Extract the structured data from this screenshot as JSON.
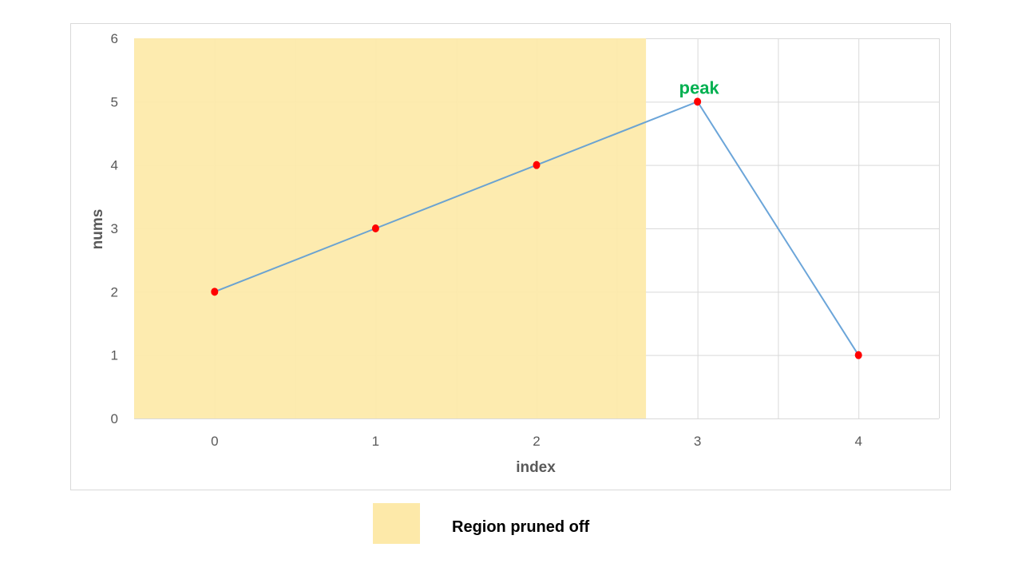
{
  "chart_data": {
    "type": "line",
    "x": [
      0,
      1,
      2,
      3,
      4
    ],
    "y": [
      2,
      3,
      4,
      5,
      1
    ],
    "xlabel": "index",
    "ylabel": "nums",
    "xticks": [
      "0",
      "1",
      "2",
      "3",
      "4"
    ],
    "yticks": [
      "0",
      "1",
      "2",
      "3",
      "4",
      "5",
      "6"
    ],
    "xlim": [
      -0.5,
      4.5
    ],
    "ylim": [
      0,
      6
    ],
    "grid": true,
    "shaded_region": {
      "x_start": -0.5,
      "x_end": 2.68,
      "color": "#fde9a9"
    },
    "annotations": [
      {
        "text": "peak",
        "x": 3,
        "y": 5,
        "color": "#00b050"
      }
    ],
    "legend": {
      "placement": "bottom-center",
      "entries": [
        {
          "label": "Region pruned off",
          "color": "#fde9a9"
        }
      ]
    },
    "colors": {
      "line": "#5b9bd5",
      "marker": "#ff0000",
      "grid": "#d9d9d9",
      "frame": "#d9d9d9"
    }
  }
}
